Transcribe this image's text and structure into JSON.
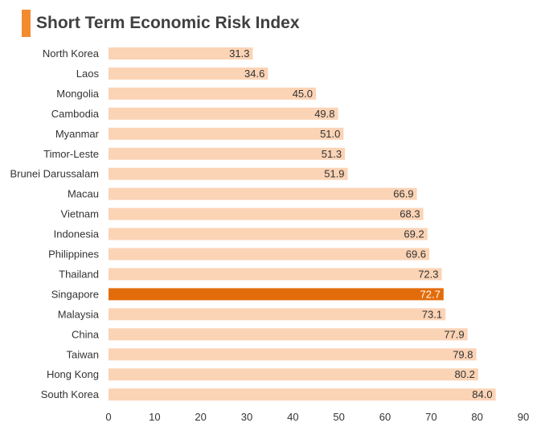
{
  "chart_data": {
    "type": "bar",
    "orientation": "horizontal",
    "title": "Short Term Economic Risk Index",
    "categories": [
      "North Korea",
      "Laos",
      "Mongolia",
      "Cambodia",
      "Myanmar",
      "Timor-Leste",
      "Brunei Darussalam",
      "Macau",
      "Vietnam",
      "Indonesia",
      "Philippines",
      "Thailand",
      "Singapore",
      "Malaysia",
      "China",
      "Taiwan",
      "Hong Kong",
      "South Korea"
    ],
    "values": [
      31.3,
      34.6,
      45.0,
      49.8,
      51.0,
      51.3,
      51.9,
      66.9,
      68.3,
      69.2,
      69.6,
      72.3,
      72.7,
      73.1,
      77.9,
      79.8,
      80.2,
      84.0
    ],
    "value_labels": [
      "31.3",
      "34.6",
      "45.0",
      "49.8",
      "51.0",
      "51.3",
      "51.9",
      "66.9",
      "68.3",
      "69.2",
      "69.6",
      "72.3",
      "72.7",
      "73.1",
      "77.9",
      "79.8",
      "80.2",
      "84.0"
    ],
    "highlight": "Singapore",
    "xlim": [
      0,
      90
    ],
    "xticks": [
      0,
      10,
      20,
      30,
      40,
      50,
      60,
      70,
      80,
      90
    ],
    "grid": false,
    "legend": "none",
    "colors": {
      "bar": "#FBD3B5",
      "highlight": "#E36C0A",
      "accent": "#F28B30"
    }
  }
}
